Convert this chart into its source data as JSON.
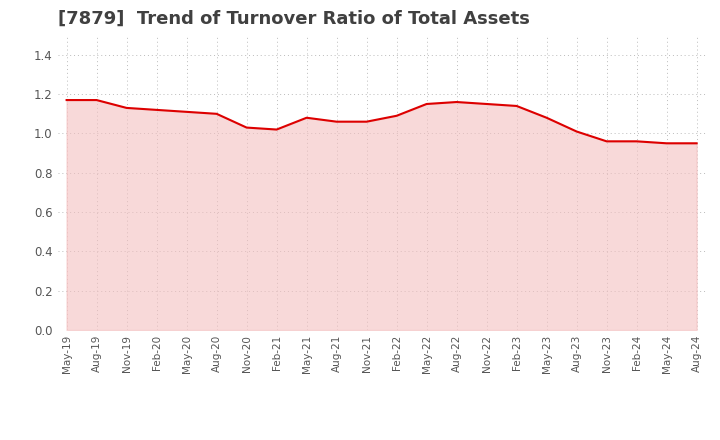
{
  "title": "[7879]  Trend of Turnover Ratio of Total Assets",
  "title_fontsize": 13,
  "title_color": "#404040",
  "background_color": "#ffffff",
  "plot_bg_color": "#ffffff",
  "line_color": "#dd0000",
  "line_width": 1.5,
  "fill_color": "#f4c0c0",
  "fill_alpha": 0.6,
  "ylim": [
    0.0,
    1.5
  ],
  "yticks": [
    0.0,
    0.2,
    0.4,
    0.6,
    0.8,
    1.0,
    1.2,
    1.4
  ],
  "grid_color": "#bbbbbb",
  "x_labels": [
    "May-19",
    "Aug-19",
    "Nov-19",
    "Feb-20",
    "May-20",
    "Aug-20",
    "Nov-20",
    "Feb-21",
    "May-21",
    "Aug-21",
    "Nov-21",
    "Feb-22",
    "May-22",
    "Aug-22",
    "Nov-22",
    "Feb-23",
    "May-23",
    "Aug-23",
    "Nov-23",
    "Feb-24",
    "May-24",
    "Aug-24"
  ],
  "values": [
    1.17,
    1.17,
    1.13,
    1.12,
    1.11,
    1.1,
    1.03,
    1.02,
    1.08,
    1.06,
    1.06,
    1.09,
    1.15,
    1.16,
    1.15,
    1.14,
    1.08,
    1.01,
    0.96,
    0.96,
    0.95,
    0.95
  ]
}
